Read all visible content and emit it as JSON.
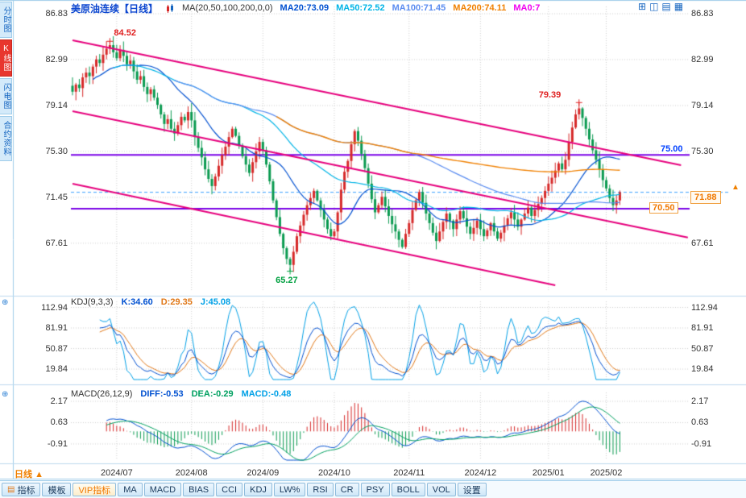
{
  "sidebar": {
    "tabs": [
      {
        "label": "分时图",
        "active": false
      },
      {
        "label": "K线图",
        "active": true
      },
      {
        "label": "闪电图",
        "active": false
      },
      {
        "label": "合约资料",
        "active": false
      }
    ]
  },
  "header": {
    "title": "美原油连续【日线】",
    "indicator_label": "MA(20,50,100,200,0,0)",
    "ma_items": [
      {
        "text": "MA20:73.09",
        "color": "#0050d0"
      },
      {
        "text": "MA50:72.52",
        "color": "#00b4e6"
      },
      {
        "text": "MA100:71.45",
        "color": "#5a8cf0"
      },
      {
        "text": "MA200:74.11",
        "color": "#f08000"
      },
      {
        "text": "MA0:7",
        "color": "#f000f0"
      }
    ],
    "layout_icons": [
      "layout-grid-icon",
      "layout-split-icon",
      "layout-rows-icon",
      "layout-columns-icon"
    ]
  },
  "main_chart": {
    "y_ticks": [
      "86.83",
      "82.99",
      "79.14",
      "75.30",
      "71.45",
      "67.61"
    ],
    "y_tick_values": [
      86.83,
      82.99,
      79.14,
      75.3,
      71.45,
      67.61
    ],
    "y_ticks_right": [
      "86.83",
      "82.99",
      "79.14",
      "75.30",
      "67.61"
    ],
    "y_tick_right_values": [
      86.83,
      82.99,
      79.14,
      75.3,
      67.61
    ],
    "current_price": {
      "value": "71.88",
      "numeric": 71.88,
      "line_color": "#3aa0ff"
    },
    "levels": [
      {
        "value": 75.0,
        "label": "75.00",
        "line_color": "#7a00e6"
      },
      {
        "value": 70.5,
        "label": "70.50",
        "line_color": "#7a00e6"
      }
    ],
    "annotations": [
      {
        "text": "84.52",
        "color": "#e02020",
        "index": 11,
        "price": 84.52,
        "pos": "above"
      },
      {
        "text": "79.39",
        "color": "#e02020",
        "index": 149,
        "price": 79.39,
        "pos": "above"
      },
      {
        "text": "65.27",
        "color": "#00a040",
        "index": 64,
        "price": 65.27,
        "pos": "below"
      }
    ],
    "trendlines": [
      {
        "i1": 0,
        "p1": 84.6,
        "i2": 179,
        "p2": 74.15
      },
      {
        "i1": 0,
        "p1": 78.67,
        "i2": 181,
        "p2": 68.1
      },
      {
        "i1": 0,
        "p1": 72.6,
        "i2": 142,
        "p2": 64.1
      }
    ],
    "trendline_color": "#e6007d",
    "up_color": "#d62828",
    "down_color": "#0a9a50"
  },
  "chart_data": {
    "type": "candlestick",
    "symbol": "美原油连续",
    "period": "日线",
    "x_labels": [
      "2024/07",
      "2024/08",
      "2024/09",
      "2024/10",
      "2024/11",
      "2024/12",
      "2025/01",
      "2025/02"
    ],
    "x_label_indices": [
      13,
      35,
      56,
      77,
      99,
      120,
      140,
      157
    ],
    "closes": [
      80.3,
      80.9,
      80.6,
      81.5,
      81.9,
      81.6,
      82.4,
      83.0,
      82.7,
      83.4,
      83.9,
      84.2,
      83.6,
      83.1,
      83.8,
      83.3,
      82.6,
      82.9,
      82.0,
      81.3,
      81.6,
      80.7,
      80.1,
      80.5,
      79.8,
      79.2,
      78.4,
      77.6,
      78.0,
      77.2,
      76.8,
      77.5,
      78.2,
      77.9,
      78.6,
      77.9,
      76.5,
      75.6,
      74.8,
      73.8,
      73.0,
      72.4,
      73.2,
      74.1,
      75.0,
      75.7,
      76.5,
      77.2,
      76.6,
      75.8,
      74.9,
      74.2,
      73.5,
      74.4,
      75.3,
      76.1,
      75.4,
      74.2,
      72.8,
      71.2,
      69.8,
      68.4,
      67.2,
      66.3,
      65.8,
      66.9,
      68.2,
      69.1,
      70.0,
      70.8,
      71.4,
      72.0,
      71.2,
      70.4,
      69.6,
      68.8,
      68.2,
      68.6,
      70.2,
      72.1,
      73.6,
      74.5,
      75.9,
      77.0,
      76.2,
      75.1,
      73.9,
      72.6,
      71.3,
      70.2,
      70.8,
      71.5,
      70.7,
      69.9,
      69.2,
      68.6,
      67.9,
      67.3,
      68.4,
      69.3,
      70.4,
      71.2,
      71.9,
      71.0,
      70.1,
      69.3,
      68.5,
      67.8,
      68.6,
      69.4,
      70.1,
      69.5,
      68.8,
      69.6,
      70.3,
      69.7,
      69.0,
      68.4,
      68.9,
      69.5,
      68.8,
      68.2,
      68.7,
      69.3,
      68.6,
      68.0,
      68.5,
      69.1,
      69.7,
      70.2,
      69.6,
      69.0,
      69.6,
      70.1,
      70.6,
      69.9,
      70.4,
      70.9,
      71.4,
      72.0,
      72.6,
      73.1,
      73.7,
      74.3,
      73.8,
      74.6,
      76.1,
      77.3,
      78.4,
      78.9,
      78.1,
      77.2,
      76.3,
      75.4,
      74.6,
      73.8,
      72.9,
      72.2,
      71.4,
      70.8,
      71.2,
      71.88
    ],
    "key_candles": {
      "11": {
        "high": 84.52
      },
      "64": {
        "low": 65.27
      },
      "149": {
        "high": 79.39
      }
    },
    "last_close": 71.88,
    "ma_periods": [
      20,
      50,
      100,
      200
    ],
    "ma_colors": [
      "#0050d0",
      "#00b4e6",
      "#5a8cf0",
      "#f08000"
    ]
  },
  "kdj": {
    "label": "KDJ(9,3,3)",
    "values": [
      {
        "text": "K:34.60",
        "color": "#0050d0"
      },
      {
        "text": "D:29.35",
        "color": "#e07818"
      },
      {
        "text": "J:45.08",
        "color": "#00a0e6"
      }
    ],
    "y_ticks": [
      "112.94",
      "81.91",
      "50.87",
      "19.84"
    ],
    "y_tick_values": [
      112.94,
      81.91,
      50.87,
      19.84
    ],
    "derived": "computed from candles with params (9,3,3)"
  },
  "macd": {
    "label": "MACD(26,12,9)",
    "values": [
      {
        "text": "DIFF:-0.53",
        "color": "#0050d0"
      },
      {
        "text": "DEA:-0.29",
        "color": "#00a060"
      },
      {
        "text": "MACD:-0.48",
        "color": "#00a0e6"
      }
    ],
    "y_ticks": [
      "2.17",
      "0.63",
      "-0.91"
    ],
    "y_tick_values": [
      2.17,
      0.63,
      -0.91
    ],
    "derived": "computed from candles with params (26,12,9)"
  },
  "footer": {
    "period_label": "日线",
    "period_arrow": "▲",
    "tabs": [
      {
        "label": "指标",
        "icon": true
      },
      {
        "label": "模板"
      },
      {
        "label": "VIP指标",
        "vip": true
      },
      {
        "label": "MA"
      },
      {
        "label": "MACD"
      },
      {
        "label": "BIAS"
      },
      {
        "label": "CCI"
      },
      {
        "label": "KDJ"
      },
      {
        "label": "LW%"
      },
      {
        "label": "RSI"
      },
      {
        "label": "CR"
      },
      {
        "label": "PSY"
      },
      {
        "label": "BOLL"
      },
      {
        "label": "VOL"
      },
      {
        "label": "设置"
      }
    ]
  }
}
